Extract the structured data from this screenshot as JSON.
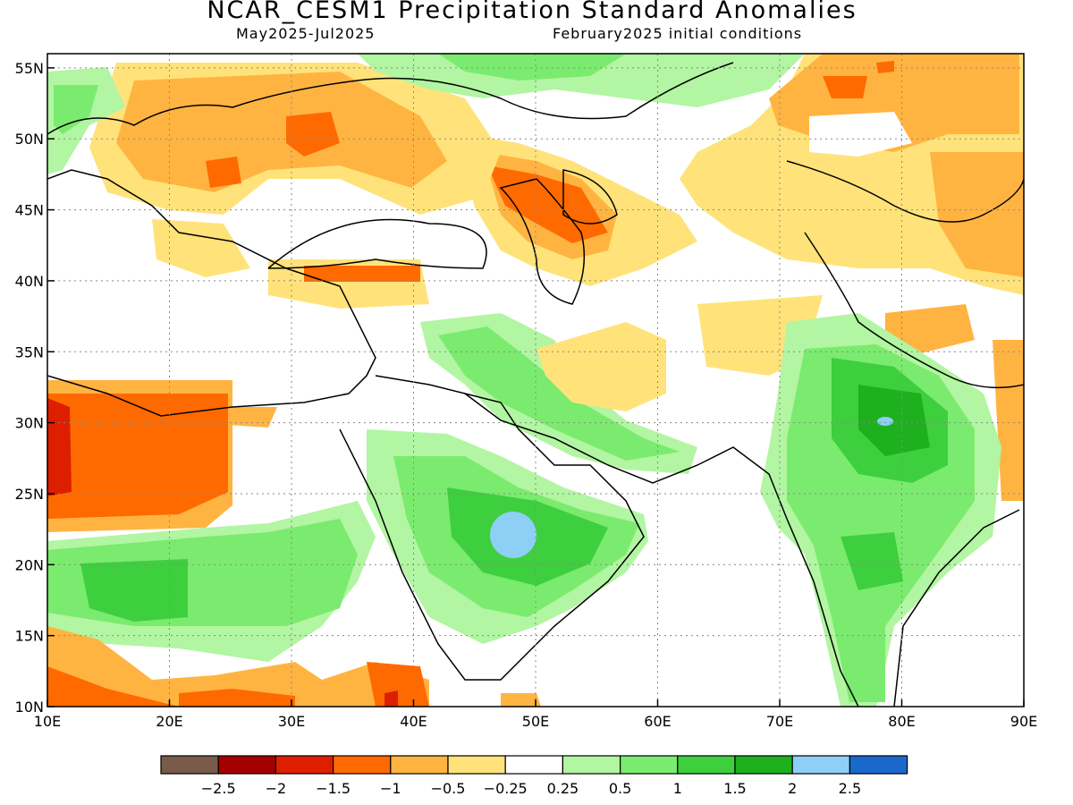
{
  "header": {
    "title": "NCAR_CESM1 Precipitation Standard Anomalies",
    "period": "May2025-Jul2025",
    "init": "February2025 initial conditions"
  },
  "map": {
    "lon_range": [
      10,
      90
    ],
    "lat_range": [
      10,
      56
    ],
    "x_ticks": [
      "10E",
      "20E",
      "30E",
      "40E",
      "50E",
      "60E",
      "70E",
      "80E",
      "90E"
    ],
    "y_ticks": [
      "10N",
      "15N",
      "20N",
      "25N",
      "30N",
      "35N",
      "40N",
      "45N",
      "50N",
      "55N"
    ],
    "grid": "dotted"
  },
  "colorbar": {
    "colors": [
      "#7a5a4a",
      "#a50000",
      "#dd1f00",
      "#ff6a00",
      "#ffb442",
      "#ffe37a",
      "#ffffff",
      "#b2f5a2",
      "#7aeb6e",
      "#3ecf3e",
      "#1fb01f",
      "#8ecff5",
      "#1a68cc"
    ],
    "labels": [
      "-2.5",
      "-2",
      "-1.5",
      "-1",
      "-0.5",
      "-0.25",
      "0.25",
      "0.5",
      "1",
      "1.5",
      "2",
      "2.5"
    ]
  },
  "anomaly_fields": [
    {
      "lon": 14,
      "lat": 28,
      "rx": 9,
      "ry": 4,
      "level": "-1.5"
    },
    {
      "lon": 11,
      "lat": 27,
      "rx": 2,
      "ry": 3,
      "level": "-2"
    },
    {
      "lon": 33,
      "lat": 49.5,
      "rx": 8,
      "ry": 3.5,
      "level": "-1"
    },
    {
      "lon": 56,
      "lat": 46,
      "rx": 4,
      "ry": 2.5,
      "level": "-1.5"
    },
    {
      "lon": 38,
      "lat": 40.5,
      "rx": 6,
      "ry": 1.4,
      "level": "-1"
    },
    {
      "lon": 80,
      "lat": 52,
      "rx": 12,
      "ry": 4,
      "level": "-1"
    },
    {
      "lon": 60,
      "lat": 34.5,
      "rx": 6,
      "ry": 3,
      "level": "-0.5"
    },
    {
      "lon": 47,
      "lat": 22,
      "rx": 8,
      "ry": 5,
      "level": "1"
    },
    {
      "lon": 47,
      "lat": 22.5,
      "rx": 1.8,
      "ry": 1.3,
      "level": "2"
    },
    {
      "lon": 78,
      "lat": 28,
      "rx": 5,
      "ry": 5,
      "level": "1.5"
    },
    {
      "lon": 79,
      "lat": 29.8,
      "rx": 0.7,
      "ry": 0.5,
      "level": "2"
    },
    {
      "lon": 18,
      "lat": 19,
      "rx": 7,
      "ry": 3,
      "level": "1"
    }
  ]
}
